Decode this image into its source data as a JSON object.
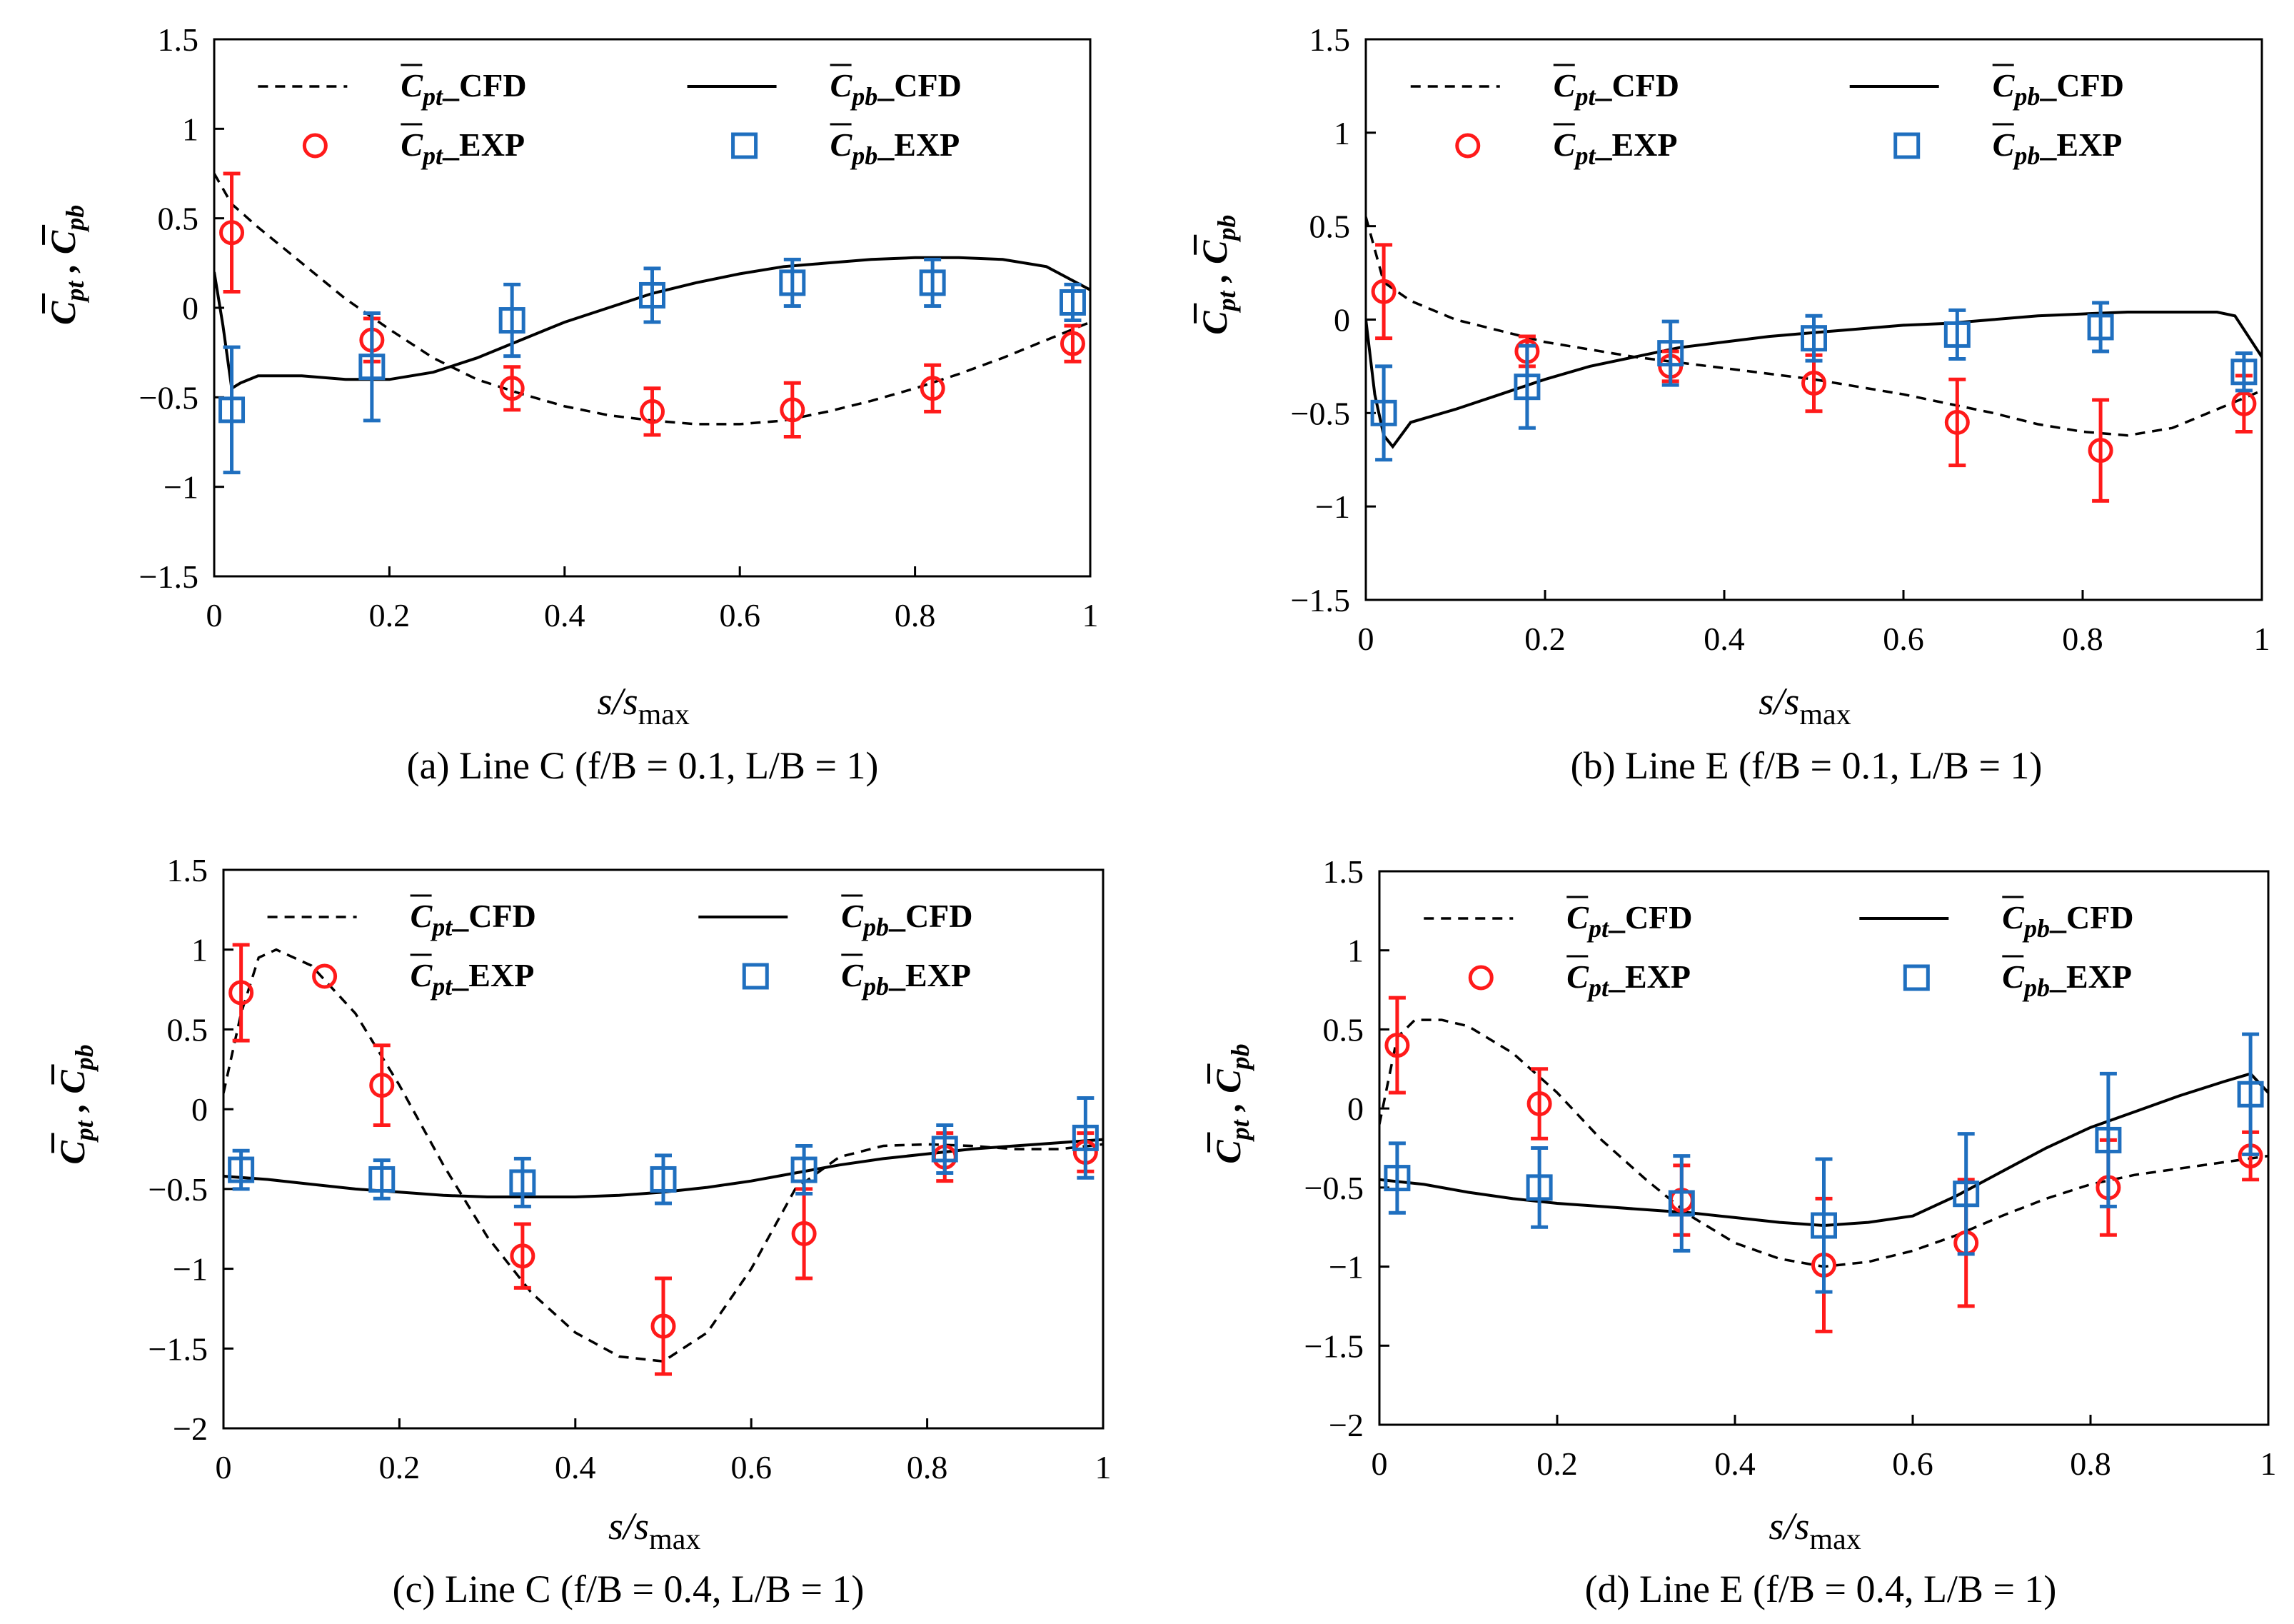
{
  "colors": {
    "pt": "#ff1a1a",
    "pb": "#1f6fbf",
    "line": "#000000"
  },
  "legend": {
    "pt_cfd": "Cpt_CFD",
    "pb_cfd": "Cpb_CFD",
    "pt_exp": "Cpt_EXP",
    "pb_exp": "Cpb_EXP"
  },
  "chart_data": [
    {
      "type": "line",
      "id": "a",
      "caption": "(a) Line C (f/B = 0.1, L/B = 1)",
      "xlabel": "s/smax",
      "ylabel": "Cpt , Cpb",
      "xlim": [
        0,
        1
      ],
      "ylim": [
        -1.5,
        1.5
      ],
      "xticks": [
        "0",
        "0.2",
        "0.4",
        "0.6",
        "0.8",
        "1"
      ],
      "yticks": [
        "1.5",
        "1",
        "0.5",
        "0",
        "-0.5",
        "-1",
        "-1.5"
      ],
      "pt_cfd": [
        [
          0,
          0.75
        ],
        [
          0.02,
          0.58
        ],
        [
          0.05,
          0.45
        ],
        [
          0.1,
          0.25
        ],
        [
          0.15,
          0.05
        ],
        [
          0.2,
          -0.12
        ],
        [
          0.25,
          -0.28
        ],
        [
          0.3,
          -0.4
        ],
        [
          0.35,
          -0.48
        ],
        [
          0.4,
          -0.55
        ],
        [
          0.45,
          -0.6
        ],
        [
          0.5,
          -0.63
        ],
        [
          0.55,
          -0.65
        ],
        [
          0.6,
          -0.65
        ],
        [
          0.65,
          -0.63
        ],
        [
          0.7,
          -0.58
        ],
        [
          0.75,
          -0.52
        ],
        [
          0.8,
          -0.45
        ],
        [
          0.85,
          -0.37
        ],
        [
          0.9,
          -0.28
        ],
        [
          0.95,
          -0.18
        ],
        [
          0.98,
          -0.12
        ],
        [
          1.0,
          -0.08
        ]
      ],
      "pb_cfd": [
        [
          0,
          0.2
        ],
        [
          0.01,
          -0.1
        ],
        [
          0.02,
          -0.45
        ],
        [
          0.03,
          -0.42
        ],
        [
          0.05,
          -0.38
        ],
        [
          0.1,
          -0.38
        ],
        [
          0.15,
          -0.4
        ],
        [
          0.2,
          -0.4
        ],
        [
          0.25,
          -0.36
        ],
        [
          0.3,
          -0.28
        ],
        [
          0.35,
          -0.18
        ],
        [
          0.4,
          -0.08
        ],
        [
          0.45,
          0.0
        ],
        [
          0.5,
          0.08
        ],
        [
          0.55,
          0.14
        ],
        [
          0.6,
          0.19
        ],
        [
          0.65,
          0.23
        ],
        [
          0.7,
          0.25
        ],
        [
          0.75,
          0.27
        ],
        [
          0.8,
          0.28
        ],
        [
          0.85,
          0.28
        ],
        [
          0.9,
          0.27
        ],
        [
          0.95,
          0.23
        ],
        [
          1.0,
          0.1
        ]
      ],
      "pt_exp": [
        [
          0.02,
          0.42,
          0.33
        ],
        [
          0.18,
          -0.18,
          0.12
        ],
        [
          0.34,
          -0.45,
          0.12
        ],
        [
          0.5,
          -0.58,
          0.13
        ],
        [
          0.66,
          -0.57,
          0.15
        ],
        [
          0.82,
          -0.45,
          0.13
        ],
        [
          0.98,
          -0.2,
          0.1
        ]
      ],
      "pb_exp": [
        [
          0.02,
          -0.57,
          0.35
        ],
        [
          0.18,
          -0.33,
          0.3
        ],
        [
          0.34,
          -0.07,
          0.2
        ],
        [
          0.5,
          0.07,
          0.15
        ],
        [
          0.66,
          0.14,
          0.13
        ],
        [
          0.82,
          0.14,
          0.13
        ],
        [
          0.98,
          0.03,
          0.1
        ]
      ]
    },
    {
      "type": "line",
      "id": "b",
      "caption": "(b) Line E (f/B = 0.1, L/B = 1)",
      "xlabel": "s/smax",
      "ylabel": "Cpt , Cpb",
      "xlim": [
        0,
        1
      ],
      "ylim": [
        -1.5,
        1.5
      ],
      "xticks": [
        "0",
        "0.2",
        "0.4",
        "0.6",
        "0.8",
        "1"
      ],
      "yticks": [
        "1.5",
        "1",
        "0.5",
        "0",
        "-0.5",
        "-1",
        "-1.5"
      ],
      "pt_cfd": [
        [
          0,
          0.55
        ],
        [
          0.02,
          0.2
        ],
        [
          0.05,
          0.1
        ],
        [
          0.1,
          0.0
        ],
        [
          0.15,
          -0.06
        ],
        [
          0.2,
          -0.12
        ],
        [
          0.25,
          -0.16
        ],
        [
          0.3,
          -0.2
        ],
        [
          0.35,
          -0.23
        ],
        [
          0.4,
          -0.26
        ],
        [
          0.45,
          -0.29
        ],
        [
          0.5,
          -0.32
        ],
        [
          0.55,
          -0.36
        ],
        [
          0.6,
          -0.4
        ],
        [
          0.65,
          -0.45
        ],
        [
          0.7,
          -0.5
        ],
        [
          0.75,
          -0.56
        ],
        [
          0.8,
          -0.6
        ],
        [
          0.85,
          -0.62
        ],
        [
          0.9,
          -0.58
        ],
        [
          0.95,
          -0.48
        ],
        [
          1.0,
          -0.38
        ]
      ],
      "pb_cfd": [
        [
          0,
          0.0
        ],
        [
          0.01,
          -0.4
        ],
        [
          0.02,
          -0.62
        ],
        [
          0.03,
          -0.68
        ],
        [
          0.05,
          -0.55
        ],
        [
          0.1,
          -0.48
        ],
        [
          0.15,
          -0.4
        ],
        [
          0.2,
          -0.32
        ],
        [
          0.25,
          -0.25
        ],
        [
          0.3,
          -0.2
        ],
        [
          0.35,
          -0.15
        ],
        [
          0.4,
          -0.12
        ],
        [
          0.45,
          -0.09
        ],
        [
          0.5,
          -0.07
        ],
        [
          0.55,
          -0.05
        ],
        [
          0.6,
          -0.03
        ],
        [
          0.65,
          -0.02
        ],
        [
          0.7,
          0.0
        ],
        [
          0.75,
          0.02
        ],
        [
          0.8,
          0.03
        ],
        [
          0.85,
          0.04
        ],
        [
          0.9,
          0.04
        ],
        [
          0.95,
          0.04
        ],
        [
          0.97,
          0.02
        ],
        [
          1.0,
          -0.2
        ]
      ],
      "pt_exp": [
        [
          0.02,
          0.15,
          0.25
        ],
        [
          0.18,
          -0.17,
          0.08
        ],
        [
          0.34,
          -0.25,
          0.08
        ],
        [
          0.5,
          -0.34,
          0.15
        ],
        [
          0.66,
          -0.55,
          0.23
        ],
        [
          0.82,
          -0.7,
          0.27
        ],
        [
          0.98,
          -0.45,
          0.15
        ]
      ],
      "pb_exp": [
        [
          0.02,
          -0.5,
          0.25
        ],
        [
          0.18,
          -0.36,
          0.22
        ],
        [
          0.34,
          -0.18,
          0.17
        ],
        [
          0.5,
          -0.1,
          0.12
        ],
        [
          0.66,
          -0.08,
          0.13
        ],
        [
          0.82,
          -0.04,
          0.13
        ],
        [
          0.98,
          -0.28,
          0.1
        ]
      ]
    },
    {
      "type": "line",
      "id": "c",
      "caption": "(c) Line C (f/B = 0.4, L/B = 1)",
      "xlabel": "s/smax",
      "ylabel": "Cpt , Cpb",
      "xlim": [
        0,
        1
      ],
      "ylim": [
        -2,
        1.5
      ],
      "xticks": [
        "0",
        "0.2",
        "0.4",
        "0.6",
        "0.8",
        "1"
      ],
      "yticks": [
        "1.5",
        "1",
        "0.5",
        "0",
        "-0.5",
        "-1",
        "-1.5",
        "-2"
      ],
      "pt_cfd": [
        [
          0,
          0.1
        ],
        [
          0.02,
          0.6
        ],
        [
          0.04,
          0.95
        ],
        [
          0.06,
          1.0
        ],
        [
          0.1,
          0.9
        ],
        [
          0.15,
          0.6
        ],
        [
          0.2,
          0.15
        ],
        [
          0.25,
          -0.35
        ],
        [
          0.3,
          -0.8
        ],
        [
          0.35,
          -1.15
        ],
        [
          0.4,
          -1.4
        ],
        [
          0.45,
          -1.55
        ],
        [
          0.5,
          -1.58
        ],
        [
          0.55,
          -1.4
        ],
        [
          0.6,
          -1.0
        ],
        [
          0.65,
          -0.5
        ],
        [
          0.7,
          -0.3
        ],
        [
          0.75,
          -0.23
        ],
        [
          0.8,
          -0.22
        ],
        [
          0.85,
          -0.23
        ],
        [
          0.9,
          -0.25
        ],
        [
          0.95,
          -0.25
        ],
        [
          1.0,
          -0.22
        ]
      ],
      "pb_cfd": [
        [
          0,
          -0.42
        ],
        [
          0.05,
          -0.44
        ],
        [
          0.1,
          -0.47
        ],
        [
          0.15,
          -0.5
        ],
        [
          0.2,
          -0.52
        ],
        [
          0.25,
          -0.54
        ],
        [
          0.3,
          -0.55
        ],
        [
          0.35,
          -0.55
        ],
        [
          0.4,
          -0.55
        ],
        [
          0.45,
          -0.54
        ],
        [
          0.5,
          -0.52
        ],
        [
          0.55,
          -0.49
        ],
        [
          0.6,
          -0.45
        ],
        [
          0.65,
          -0.4
        ],
        [
          0.7,
          -0.35
        ],
        [
          0.75,
          -0.31
        ],
        [
          0.8,
          -0.28
        ],
        [
          0.85,
          -0.25
        ],
        [
          0.9,
          -0.23
        ],
        [
          0.95,
          -0.21
        ],
        [
          1.0,
          -0.19
        ]
      ],
      "pt_exp": [
        [
          0.02,
          0.73,
          0.3
        ],
        [
          0.18,
          0.15,
          0.25
        ],
        [
          0.34,
          -0.92,
          0.2
        ],
        [
          0.5,
          -1.36,
          0.3
        ],
        [
          0.66,
          -0.78,
          0.28
        ],
        [
          0.82,
          -0.3,
          0.15
        ],
        [
          0.98,
          -0.27,
          0.12
        ]
      ],
      "pb_exp": [
        [
          0.02,
          -0.38,
          0.12
        ],
        [
          0.18,
          -0.44,
          0.12
        ],
        [
          0.34,
          -0.46,
          0.15
        ],
        [
          0.5,
          -0.44,
          0.15
        ],
        [
          0.66,
          -0.38,
          0.15
        ],
        [
          0.82,
          -0.25,
          0.15
        ],
        [
          0.98,
          -0.18,
          0.25
        ]
      ]
    },
    {
      "type": "line",
      "id": "d",
      "caption": "(d) Line E (f/B = 0.4, L/B = 1)",
      "xlabel": "s/smax",
      "ylabel": "Cpt , Cpb",
      "xlim": [
        0,
        1
      ],
      "ylim": [
        -2,
        1.5
      ],
      "xticks": [
        "0",
        "0.2",
        "0.4",
        "0.6",
        "0.8",
        "1"
      ],
      "yticks": [
        "1.5",
        "1",
        "0.5",
        "0",
        "-0.5",
        "-1",
        "-1.5",
        "-2"
      ],
      "pt_cfd": [
        [
          0,
          -0.1
        ],
        [
          0.02,
          0.45
        ],
        [
          0.04,
          0.56
        ],
        [
          0.07,
          0.56
        ],
        [
          0.1,
          0.52
        ],
        [
          0.15,
          0.35
        ],
        [
          0.2,
          0.1
        ],
        [
          0.25,
          -0.2
        ],
        [
          0.3,
          -0.45
        ],
        [
          0.35,
          -0.68
        ],
        [
          0.4,
          -0.85
        ],
        [
          0.45,
          -0.95
        ],
        [
          0.5,
          -1.0
        ],
        [
          0.55,
          -0.97
        ],
        [
          0.6,
          -0.9
        ],
        [
          0.65,
          -0.8
        ],
        [
          0.7,
          -0.68
        ],
        [
          0.75,
          -0.57
        ],
        [
          0.8,
          -0.48
        ],
        [
          0.85,
          -0.42
        ],
        [
          0.9,
          -0.38
        ],
        [
          0.95,
          -0.34
        ],
        [
          1.0,
          -0.3
        ]
      ],
      "pb_cfd": [
        [
          0,
          -0.45
        ],
        [
          0.05,
          -0.48
        ],
        [
          0.1,
          -0.53
        ],
        [
          0.15,
          -0.57
        ],
        [
          0.2,
          -0.6
        ],
        [
          0.25,
          -0.62
        ],
        [
          0.3,
          -0.64
        ],
        [
          0.35,
          -0.66
        ],
        [
          0.4,
          -0.69
        ],
        [
          0.45,
          -0.72
        ],
        [
          0.5,
          -0.74
        ],
        [
          0.55,
          -0.72
        ],
        [
          0.6,
          -0.68
        ],
        [
          0.65,
          -0.55
        ],
        [
          0.7,
          -0.4
        ],
        [
          0.75,
          -0.25
        ],
        [
          0.8,
          -0.12
        ],
        [
          0.85,
          -0.02
        ],
        [
          0.9,
          0.08
        ],
        [
          0.95,
          0.17
        ],
        [
          0.98,
          0.22
        ],
        [
          1.0,
          0.1
        ]
      ],
      "pt_exp": [
        [
          0.02,
          0.4,
          0.3
        ],
        [
          0.18,
          0.03,
          0.22
        ],
        [
          0.34,
          -0.58,
          0.22
        ],
        [
          0.5,
          -0.99,
          0.42
        ],
        [
          0.66,
          -0.85,
          0.4
        ],
        [
          0.82,
          -0.5,
          0.3
        ],
        [
          0.98,
          -0.3,
          0.15
        ]
      ],
      "pb_exp": [
        [
          0.02,
          -0.44,
          0.22
        ],
        [
          0.18,
          -0.5,
          0.25
        ],
        [
          0.34,
          -0.6,
          0.3
        ],
        [
          0.5,
          -0.74,
          0.42
        ],
        [
          0.66,
          -0.54,
          0.38
        ],
        [
          0.82,
          -0.2,
          0.42
        ],
        [
          0.98,
          0.09,
          0.38
        ]
      ]
    }
  ]
}
